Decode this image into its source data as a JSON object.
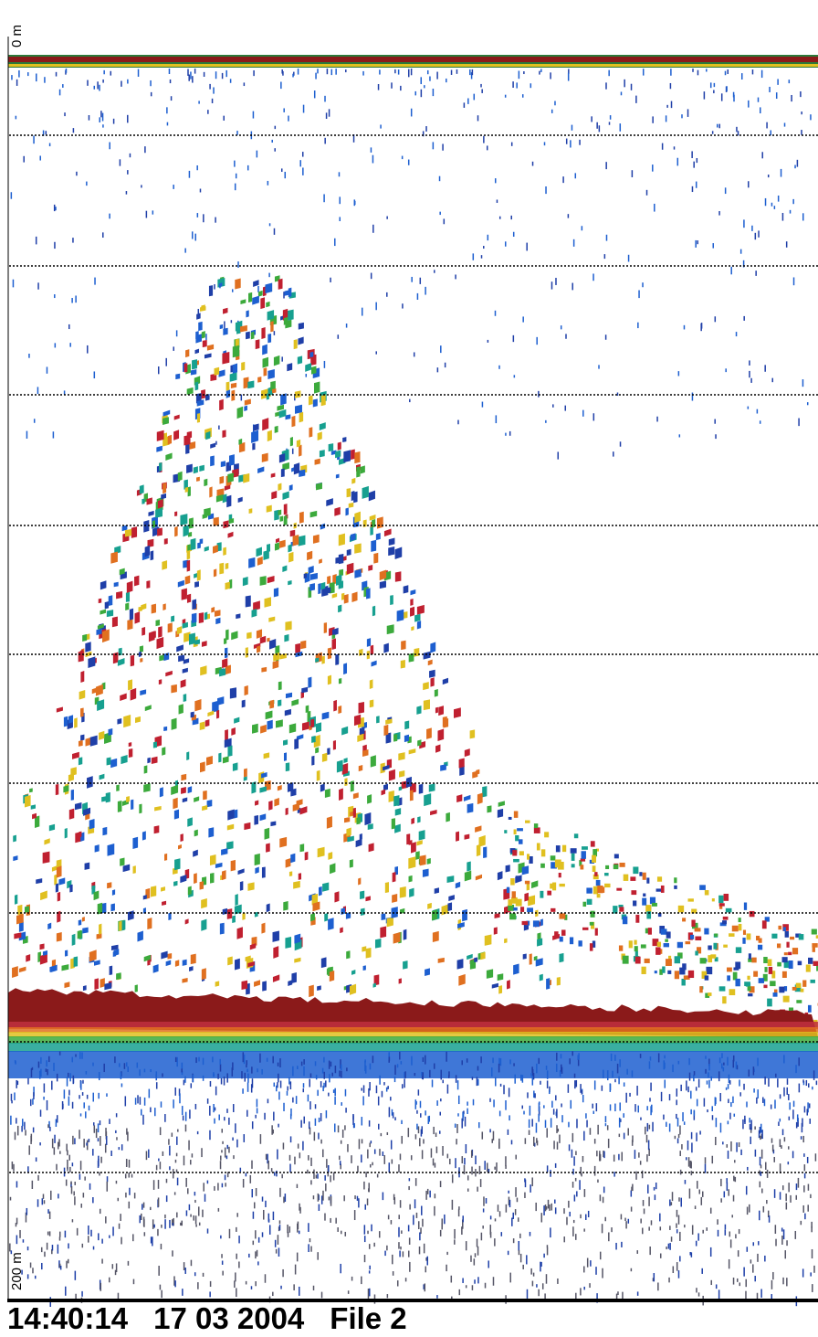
{
  "depth_top": "0 m",
  "depth_bottom": "200 m",
  "footer": {
    "time": "14:40:14",
    "date": "17 03 2004",
    "file": "File 2"
  }
}
